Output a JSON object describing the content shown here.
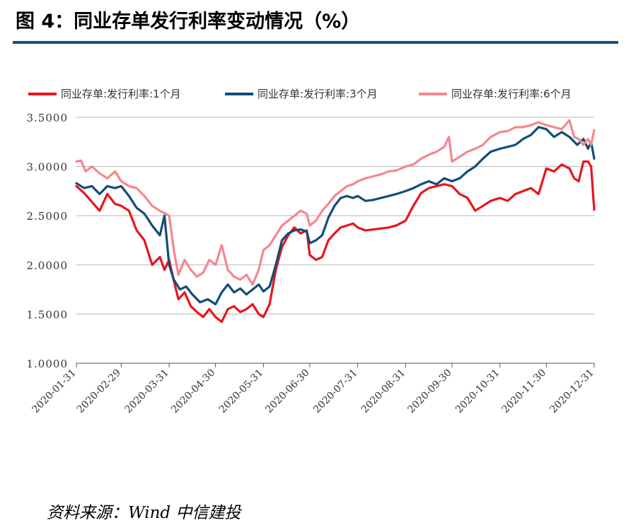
{
  "figure_title": "图 4：同业存单发行利率变动情况（%）",
  "source_note": "资料来源：Wind 中信建投",
  "chart_data": {
    "type": "line",
    "title": "",
    "xlabel": "",
    "ylabel": "",
    "ylim": [
      1.0,
      3.5
    ],
    "yticks": [
      "3.5000",
      "3.0000",
      "2.5000",
      "2.0000",
      "1.5000",
      "1.0000"
    ],
    "x_tick_labels": [
      "2020-01-31",
      "2020-02-29",
      "2020-03-31",
      "2020-04-30",
      "2020-05-31",
      "2020-06-30",
      "2020-07-31",
      "2020-08-31",
      "2020-09-30",
      "2020-10-31",
      "2020-11-30",
      "2020-12-31"
    ],
    "xlim": [
      "2020-01-31",
      "2020-12-31"
    ],
    "grid": "horizontal",
    "legend_position": "top",
    "series": [
      {
        "name": "同业存单:发行利率:1个月",
        "color": "#e8141c",
        "points": [
          [
            "2020-01-31",
            2.8
          ],
          [
            "2020-02-05",
            2.73
          ],
          [
            "2020-02-10",
            2.64
          ],
          [
            "2020-02-15",
            2.55
          ],
          [
            "2020-02-20",
            2.72
          ],
          [
            "2020-02-25",
            2.62
          ],
          [
            "2020-02-29",
            2.6
          ],
          [
            "2020-03-05",
            2.55
          ],
          [
            "2020-03-10",
            2.35
          ],
          [
            "2020-03-15",
            2.25
          ],
          [
            "2020-03-20",
            2.0
          ],
          [
            "2020-03-25",
            2.08
          ],
          [
            "2020-03-28",
            1.95
          ],
          [
            "2020-03-31",
            2.05
          ],
          [
            "2020-04-03",
            1.84
          ],
          [
            "2020-04-06",
            1.65
          ],
          [
            "2020-04-10",
            1.72
          ],
          [
            "2020-04-14",
            1.58
          ],
          [
            "2020-04-18",
            1.52
          ],
          [
            "2020-04-22",
            1.47
          ],
          [
            "2020-04-26",
            1.55
          ],
          [
            "2020-04-30",
            1.47
          ],
          [
            "2020-05-04",
            1.42
          ],
          [
            "2020-05-08",
            1.55
          ],
          [
            "2020-05-12",
            1.58
          ],
          [
            "2020-05-16",
            1.52
          ],
          [
            "2020-05-20",
            1.55
          ],
          [
            "2020-05-24",
            1.6
          ],
          [
            "2020-05-28",
            1.5
          ],
          [
            "2020-05-31",
            1.47
          ],
          [
            "2020-06-04",
            1.6
          ],
          [
            "2020-06-08",
            1.95
          ],
          [
            "2020-06-12",
            2.18
          ],
          [
            "2020-06-16",
            2.3
          ],
          [
            "2020-06-20",
            2.38
          ],
          [
            "2020-06-24",
            2.32
          ],
          [
            "2020-06-28",
            2.35
          ],
          [
            "2020-06-30",
            2.1
          ],
          [
            "2020-07-04",
            2.05
          ],
          [
            "2020-07-08",
            2.08
          ],
          [
            "2020-07-12",
            2.25
          ],
          [
            "2020-07-16",
            2.32
          ],
          [
            "2020-07-20",
            2.38
          ],
          [
            "2020-07-24",
            2.4
          ],
          [
            "2020-07-28",
            2.42
          ],
          [
            "2020-07-31",
            2.38
          ],
          [
            "2020-08-05",
            2.35
          ],
          [
            "2020-08-10",
            2.36
          ],
          [
            "2020-08-15",
            2.37
          ],
          [
            "2020-08-20",
            2.38
          ],
          [
            "2020-08-25",
            2.4
          ],
          [
            "2020-08-31",
            2.45
          ],
          [
            "2020-09-05",
            2.6
          ],
          [
            "2020-09-10",
            2.73
          ],
          [
            "2020-09-15",
            2.78
          ],
          [
            "2020-09-20",
            2.8
          ],
          [
            "2020-09-25",
            2.82
          ],
          [
            "2020-09-30",
            2.8
          ],
          [
            "2020-10-05",
            2.72
          ],
          [
            "2020-10-10",
            2.68
          ],
          [
            "2020-10-15",
            2.55
          ],
          [
            "2020-10-20",
            2.6
          ],
          [
            "2020-10-25",
            2.65
          ],
          [
            "2020-10-31",
            2.68
          ],
          [
            "2020-11-05",
            2.65
          ],
          [
            "2020-11-10",
            2.72
          ],
          [
            "2020-11-15",
            2.75
          ],
          [
            "2020-11-20",
            2.78
          ],
          [
            "2020-11-25",
            2.72
          ],
          [
            "2020-11-30",
            2.98
          ],
          [
            "2020-12-05",
            2.95
          ],
          [
            "2020-12-10",
            3.02
          ],
          [
            "2020-12-15",
            2.98
          ],
          [
            "2020-12-18",
            2.88
          ],
          [
            "2020-12-21",
            2.85
          ],
          [
            "2020-12-24",
            3.05
          ],
          [
            "2020-12-27",
            3.05
          ],
          [
            "2020-12-29",
            3.0
          ],
          [
            "2020-12-31",
            2.56
          ]
        ]
      },
      {
        "name": "同业存单:发行利率:3个月",
        "color": "#124d78",
        "points": [
          [
            "2020-01-31",
            2.83
          ],
          [
            "2020-02-05",
            2.78
          ],
          [
            "2020-02-10",
            2.8
          ],
          [
            "2020-02-15",
            2.72
          ],
          [
            "2020-02-20",
            2.8
          ],
          [
            "2020-02-25",
            2.78
          ],
          [
            "2020-02-29",
            2.8
          ],
          [
            "2020-03-05",
            2.7
          ],
          [
            "2020-03-10",
            2.58
          ],
          [
            "2020-03-15",
            2.52
          ],
          [
            "2020-03-20",
            2.4
          ],
          [
            "2020-03-25",
            2.3
          ],
          [
            "2020-03-28",
            2.5
          ],
          [
            "2020-03-31",
            2.0
          ],
          [
            "2020-04-03",
            1.85
          ],
          [
            "2020-04-07",
            1.75
          ],
          [
            "2020-04-11",
            1.78
          ],
          [
            "2020-04-15",
            1.7
          ],
          [
            "2020-04-20",
            1.62
          ],
          [
            "2020-04-25",
            1.65
          ],
          [
            "2020-04-30",
            1.6
          ],
          [
            "2020-05-04",
            1.72
          ],
          [
            "2020-05-08",
            1.8
          ],
          [
            "2020-05-12",
            1.72
          ],
          [
            "2020-05-16",
            1.76
          ],
          [
            "2020-05-20",
            1.7
          ],
          [
            "2020-05-24",
            1.75
          ],
          [
            "2020-05-28",
            1.8
          ],
          [
            "2020-05-31",
            1.73
          ],
          [
            "2020-06-04",
            1.78
          ],
          [
            "2020-06-08",
            2.0
          ],
          [
            "2020-06-12",
            2.25
          ],
          [
            "2020-06-16",
            2.32
          ],
          [
            "2020-06-20",
            2.35
          ],
          [
            "2020-06-24",
            2.36
          ],
          [
            "2020-06-28",
            2.34
          ],
          [
            "2020-06-30",
            2.22
          ],
          [
            "2020-07-04",
            2.25
          ],
          [
            "2020-07-08",
            2.3
          ],
          [
            "2020-07-12",
            2.48
          ],
          [
            "2020-07-16",
            2.6
          ],
          [
            "2020-07-20",
            2.68
          ],
          [
            "2020-07-24",
            2.7
          ],
          [
            "2020-07-28",
            2.68
          ],
          [
            "2020-07-31",
            2.7
          ],
          [
            "2020-08-05",
            2.65
          ],
          [
            "2020-08-10",
            2.66
          ],
          [
            "2020-08-15",
            2.68
          ],
          [
            "2020-08-20",
            2.7
          ],
          [
            "2020-08-25",
            2.72
          ],
          [
            "2020-08-31",
            2.75
          ],
          [
            "2020-09-05",
            2.78
          ],
          [
            "2020-09-10",
            2.82
          ],
          [
            "2020-09-15",
            2.85
          ],
          [
            "2020-09-20",
            2.82
          ],
          [
            "2020-09-25",
            2.88
          ],
          [
            "2020-09-30",
            2.85
          ],
          [
            "2020-10-05",
            2.88
          ],
          [
            "2020-10-10",
            2.95
          ],
          [
            "2020-10-15",
            3.0
          ],
          [
            "2020-10-20",
            3.08
          ],
          [
            "2020-10-25",
            3.15
          ],
          [
            "2020-10-31",
            3.18
          ],
          [
            "2020-11-05",
            3.2
          ],
          [
            "2020-11-10",
            3.22
          ],
          [
            "2020-11-15",
            3.28
          ],
          [
            "2020-11-20",
            3.32
          ],
          [
            "2020-11-25",
            3.4
          ],
          [
            "2020-11-30",
            3.38
          ],
          [
            "2020-12-05",
            3.3
          ],
          [
            "2020-12-10",
            3.35
          ],
          [
            "2020-12-15",
            3.3
          ],
          [
            "2020-12-20",
            3.22
          ],
          [
            "2020-12-24",
            3.28
          ],
          [
            "2020-12-27",
            3.18
          ],
          [
            "2020-12-29",
            3.25
          ],
          [
            "2020-12-31",
            3.08
          ]
        ]
      },
      {
        "name": "同业存单:发行利率:6个月",
        "color": "#f4878e",
        "points": [
          [
            "2020-01-31",
            3.05
          ],
          [
            "2020-02-03",
            3.06
          ],
          [
            "2020-02-06",
            2.95
          ],
          [
            "2020-02-10",
            3.0
          ],
          [
            "2020-02-15",
            2.93
          ],
          [
            "2020-02-20",
            2.88
          ],
          [
            "2020-02-25",
            2.95
          ],
          [
            "2020-02-29",
            2.85
          ],
          [
            "2020-03-05",
            2.8
          ],
          [
            "2020-03-10",
            2.78
          ],
          [
            "2020-03-15",
            2.7
          ],
          [
            "2020-03-20",
            2.6
          ],
          [
            "2020-03-25",
            2.55
          ],
          [
            "2020-03-31",
            2.5
          ],
          [
            "2020-04-03",
            2.15
          ],
          [
            "2020-04-06",
            1.9
          ],
          [
            "2020-04-10",
            2.05
          ],
          [
            "2020-04-14",
            1.95
          ],
          [
            "2020-04-18",
            1.88
          ],
          [
            "2020-04-22",
            1.92
          ],
          [
            "2020-04-26",
            2.05
          ],
          [
            "2020-04-30",
            2.0
          ],
          [
            "2020-05-04",
            2.2
          ],
          [
            "2020-05-08",
            1.95
          ],
          [
            "2020-05-12",
            1.88
          ],
          [
            "2020-05-16",
            1.85
          ],
          [
            "2020-05-20",
            1.9
          ],
          [
            "2020-05-24",
            1.8
          ],
          [
            "2020-05-28",
            1.95
          ],
          [
            "2020-05-31",
            2.15
          ],
          [
            "2020-06-04",
            2.2
          ],
          [
            "2020-06-08",
            2.3
          ],
          [
            "2020-06-12",
            2.4
          ],
          [
            "2020-06-16",
            2.45
          ],
          [
            "2020-06-20",
            2.5
          ],
          [
            "2020-06-24",
            2.55
          ],
          [
            "2020-06-28",
            2.52
          ],
          [
            "2020-06-30",
            2.4
          ],
          [
            "2020-07-04",
            2.45
          ],
          [
            "2020-07-08",
            2.55
          ],
          [
            "2020-07-12",
            2.62
          ],
          [
            "2020-07-16",
            2.7
          ],
          [
            "2020-07-20",
            2.75
          ],
          [
            "2020-07-24",
            2.8
          ],
          [
            "2020-07-28",
            2.82
          ],
          [
            "2020-07-31",
            2.85
          ],
          [
            "2020-08-05",
            2.88
          ],
          [
            "2020-08-10",
            2.9
          ],
          [
            "2020-08-15",
            2.92
          ],
          [
            "2020-08-20",
            2.95
          ],
          [
            "2020-08-25",
            2.96
          ],
          [
            "2020-08-31",
            3.0
          ],
          [
            "2020-09-05",
            3.02
          ],
          [
            "2020-09-10",
            3.08
          ],
          [
            "2020-09-15",
            3.12
          ],
          [
            "2020-09-20",
            3.15
          ],
          [
            "2020-09-25",
            3.2
          ],
          [
            "2020-09-28",
            3.3
          ],
          [
            "2020-09-30",
            3.05
          ],
          [
            "2020-10-05",
            3.1
          ],
          [
            "2020-10-10",
            3.15
          ],
          [
            "2020-10-15",
            3.18
          ],
          [
            "2020-10-20",
            3.22
          ],
          [
            "2020-10-25",
            3.3
          ],
          [
            "2020-10-31",
            3.35
          ],
          [
            "2020-11-05",
            3.36
          ],
          [
            "2020-11-10",
            3.4
          ],
          [
            "2020-11-15",
            3.4
          ],
          [
            "2020-11-20",
            3.42
          ],
          [
            "2020-11-25",
            3.45
          ],
          [
            "2020-11-30",
            3.42
          ],
          [
            "2020-12-05",
            3.4
          ],
          [
            "2020-12-10",
            3.38
          ],
          [
            "2020-12-15",
            3.47
          ],
          [
            "2020-12-18",
            3.3
          ],
          [
            "2020-12-21",
            3.28
          ],
          [
            "2020-12-24",
            3.22
          ],
          [
            "2020-12-27",
            3.28
          ],
          [
            "2020-12-29",
            3.22
          ],
          [
            "2020-12-31",
            3.37
          ]
        ]
      }
    ]
  }
}
